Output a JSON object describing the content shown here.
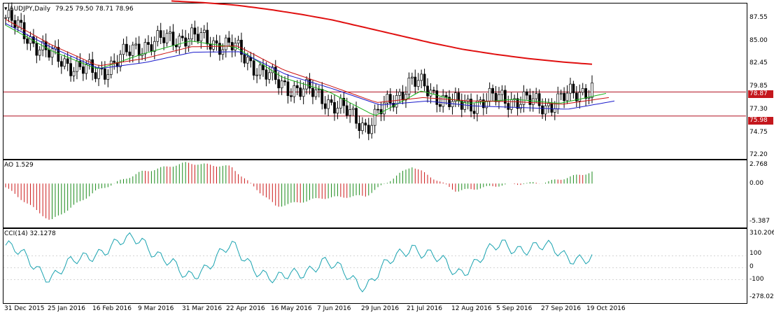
{
  "main": {
    "header": {
      "symbol": "AUDJPY,Daily",
      "ohlc": "79.25 79.50 78.71 78.96"
    },
    "scale": [
      "87.55",
      "85.00",
      "82.45",
      "79.85",
      "77.30",
      "74.75",
      "72.20"
    ],
    "hlines": [
      {
        "label": "78.87",
        "value": 78.87
      },
      {
        "label": "75.98",
        "value": 75.98
      }
    ]
  },
  "ao": {
    "header": "AO 1.529",
    "scale": [
      "2.768",
      "0.00",
      "-5.387"
    ]
  },
  "cci": {
    "header": "CCI(14) 32.1278",
    "scale": [
      "310.206",
      "100",
      "0",
      "-100",
      "-278.026"
    ]
  },
  "dates": [
    "31 Dec 2015",
    "25 Jan 2016",
    "16 Feb 2016",
    "9 Mar 2016",
    "31 Mar 2016",
    "22 Apr 2016",
    "16 May 2016",
    "7 Jun 2016",
    "29 Jun 2016",
    "21 Jul 2016",
    "12 Aug 2016",
    "5 Sep 2016",
    "27 Sep 2016",
    "19 Oct 2016"
  ],
  "colors": {
    "long_ma": "#e01010",
    "red_ma": "#cc1111",
    "green_ma": "#19b019",
    "blue_ma": "#1a1acc",
    "ao_up": "#1a8a1a",
    "ao_down": "#cc1a1a",
    "cci": "#1aa3b0",
    "hline": "#b01020"
  },
  "chart_data": [
    {
      "type": "candlestick",
      "title": "AUDJPY,Daily",
      "ylim": [
        71.0,
        89.5
      ],
      "x": [
        "31 Dec 2015",
        "25 Jan 2016",
        "16 Feb 2016",
        "9 Mar 2016",
        "31 Mar 2016",
        "22 Apr 2016",
        "16 May 2016",
        "7 Jun 2016",
        "29 Jun 2016",
        "21 Jul 2016",
        "12 Aug 2016",
        "5 Sep 2016",
        "27 Sep 2016",
        "19 Oct 2016"
      ],
      "close_approx": [
        87.8,
        83.2,
        81.0,
        84.5,
        85.6,
        84.4,
        80.0,
        78.4,
        74.8,
        80.2,
        77.2,
        78.2,
        77.3,
        79.5
      ],
      "series": [
        {
          "name": "long_ma",
          "values": [
            89.8,
            89.6,
            89.3,
            88.8,
            88.2,
            87.5,
            86.6,
            85.7,
            84.8,
            84.0,
            83.4,
            82.9,
            82.5,
            82.2
          ]
        },
        {
          "name": "fast_ma",
          "values": [
            86.9,
            83.8,
            81.6,
            83.5,
            85.0,
            84.2,
            80.6,
            78.9,
            76.0,
            79.0,
            77.5,
            78.0,
            77.5,
            78.7
          ]
        },
        {
          "name": "slow_ma",
          "values": [
            87.6,
            84.5,
            82.0,
            82.9,
            84.3,
            84.4,
            81.5,
            79.6,
            77.6,
            78.2,
            77.8,
            77.7,
            77.4,
            78.2
          ]
        }
      ],
      "hlines": [
        78.87,
        75.98
      ]
    },
    {
      "type": "bar",
      "title": "AO 1.529",
      "ylim": [
        -5.387,
        2.768
      ],
      "series": [
        {
          "values": [
            -0.5,
            -4.9,
            -1.0,
            1.5,
            2.7,
            2.2,
            -3.0,
            -1.9,
            -1.6,
            2.3,
            -1.0,
            -0.2,
            0.2,
            1.5
          ]
        }
      ]
    },
    {
      "type": "line",
      "title": "CCI(14) 32.1278",
      "ylim": [
        -278.026,
        310.206
      ],
      "series": [
        {
          "values": [
            190,
            -70,
            140,
            250,
            -90,
            170,
            -120,
            50,
            -140,
            200,
            -40,
            190,
            160,
            60
          ]
        }
      ]
    }
  ]
}
